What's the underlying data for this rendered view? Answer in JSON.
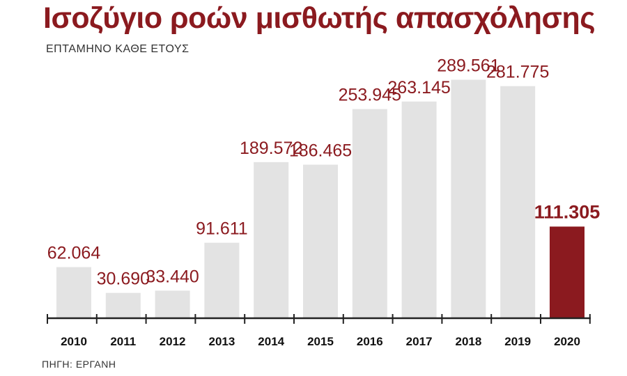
{
  "header": {
    "title": "Ισοζύγιο ροών μισθωτής απασχόλησης",
    "subtitle": "ΕΠΤΑΜΗΝΟ ΚΑΘΕ ΕΤΟΥΣ"
  },
  "footer": {
    "source": "ΠΗΓΗ: ΕΡΓΑΝΗ"
  },
  "colors": {
    "bar": "#e3e3e3",
    "highlight_bar": "#8b1a1f",
    "value_label": "#8b1a1f",
    "axis": "#222222"
  },
  "chart_data": {
    "type": "bar",
    "title": "Ισοζύγιο ροών μισθωτής απασχόλησης",
    "subtitle": "ΕΠΤΑΜΗΝΟ ΚΑΘΕ ΕΤΟΥΣ",
    "categories": [
      "2010",
      "2011",
      "2012",
      "2013",
      "2014",
      "2015",
      "2016",
      "2017",
      "2018",
      "2019",
      "2020"
    ],
    "values": [
      62064,
      30690,
      33440,
      91611,
      189572,
      186465,
      253945,
      263145,
      289561,
      281775,
      111305
    ],
    "value_labels": [
      "62.064",
      "30.690",
      "33.440",
      "91.611",
      "189.572",
      "186.465",
      "253.945",
      "263.145",
      "289.561",
      "281.775",
      "111.305"
    ],
    "highlight_index": 10,
    "ylim": [
      0,
      300000
    ],
    "grid": false,
    "xlabel": "",
    "ylabel": ""
  }
}
